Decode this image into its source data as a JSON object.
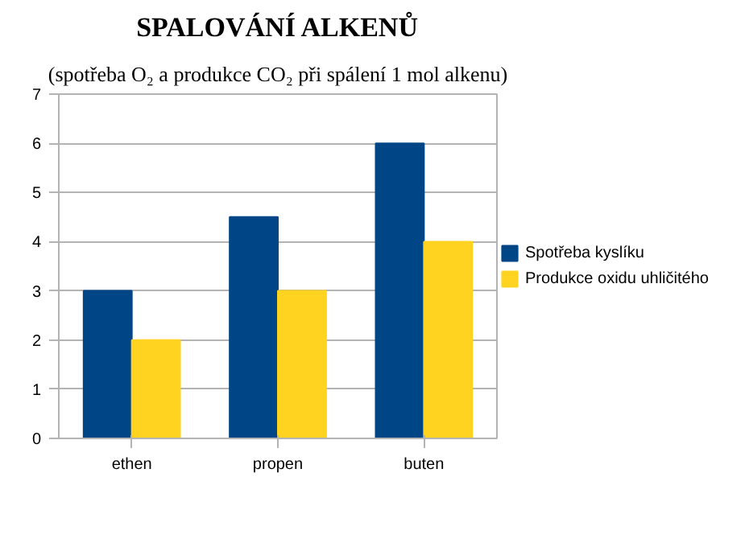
{
  "chart_data": {
    "type": "bar",
    "title": "SPALOVÁNÍ ALKENŮ",
    "subtitle": "(spotřeba O₂ a produkce CO₂ při spálení 1 mol alkenu)",
    "categories": [
      "ethen",
      "propen",
      "buten"
    ],
    "series": [
      {
        "name": "Spotřeba kyslíku",
        "color": "#004586",
        "values": [
          3,
          4.5,
          6
        ]
      },
      {
        "name": "Produkce oxidu uhličitého",
        "color": "#ffd320",
        "values": [
          2,
          3,
          4
        ]
      }
    ],
    "ylim": [
      0,
      7
    ],
    "yticks": [
      0,
      1,
      2,
      3,
      4,
      5,
      6,
      7
    ],
    "grid": "y",
    "legend": "right"
  }
}
